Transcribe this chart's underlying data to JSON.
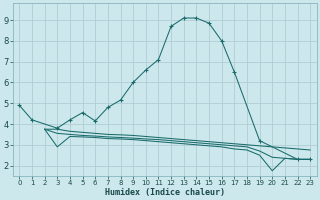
{
  "title": "",
  "xlabel": "Humidex (Indice chaleur)",
  "bg_color": "#cce8ec",
  "grid_color": "#b0cdd4",
  "line_color": "#1a6b6b",
  "xlim": [
    -0.5,
    23.5
  ],
  "ylim": [
    1.5,
    9.8
  ],
  "xticks": [
    0,
    1,
    2,
    3,
    4,
    5,
    6,
    7,
    8,
    9,
    10,
    11,
    12,
    13,
    14,
    15,
    16,
    17,
    18,
    19,
    20,
    21,
    22,
    23
  ],
  "yticks": [
    2,
    3,
    4,
    5,
    6,
    7,
    8,
    9
  ],
  "main_x": [
    0,
    1,
    3,
    4,
    5,
    6,
    7,
    8,
    9,
    10,
    11,
    12,
    13,
    14,
    15,
    16,
    17,
    19,
    22,
    23
  ],
  "main_y": [
    4.9,
    4.2,
    3.8,
    4.2,
    4.55,
    4.15,
    4.8,
    5.15,
    6.0,
    6.6,
    7.1,
    8.7,
    9.1,
    9.1,
    8.85,
    8.0,
    6.5,
    3.2,
    2.3,
    2.3
  ],
  "flat_lines": [
    {
      "x": [
        2,
        3,
        4,
        5,
        6,
        7,
        8,
        9,
        10,
        11,
        12,
        13,
        14,
        15,
        16,
        17,
        18,
        19,
        20,
        21,
        22,
        23
      ],
      "y": [
        3.75,
        3.75,
        3.65,
        3.6,
        3.55,
        3.5,
        3.48,
        3.45,
        3.4,
        3.35,
        3.3,
        3.25,
        3.2,
        3.15,
        3.1,
        3.05,
        3.0,
        2.95,
        2.9,
        2.85,
        2.8,
        2.75
      ]
    },
    {
      "x": [
        2,
        3,
        4,
        5,
        6,
        7,
        8,
        9,
        10,
        11,
        12,
        13,
        14,
        15,
        16,
        17,
        18,
        19,
        20,
        21,
        22,
        23
      ],
      "y": [
        3.75,
        3.55,
        3.5,
        3.45,
        3.42,
        3.38,
        3.35,
        3.32,
        3.28,
        3.25,
        3.2,
        3.15,
        3.1,
        3.05,
        3.0,
        2.95,
        2.9,
        2.7,
        2.4,
        2.35,
        2.3,
        2.3
      ]
    },
    {
      "x": [
        2,
        3,
        4,
        5,
        6,
        7,
        8,
        9,
        10,
        11,
        12,
        13,
        14,
        15,
        16,
        17,
        18,
        19,
        20,
        21,
        22,
        23
      ],
      "y": [
        3.75,
        2.9,
        3.4,
        3.38,
        3.35,
        3.3,
        3.28,
        3.25,
        3.2,
        3.15,
        3.1,
        3.05,
        3.0,
        2.95,
        2.9,
        2.8,
        2.75,
        2.5,
        1.75,
        2.35,
        2.3,
        2.3
      ]
    }
  ]
}
